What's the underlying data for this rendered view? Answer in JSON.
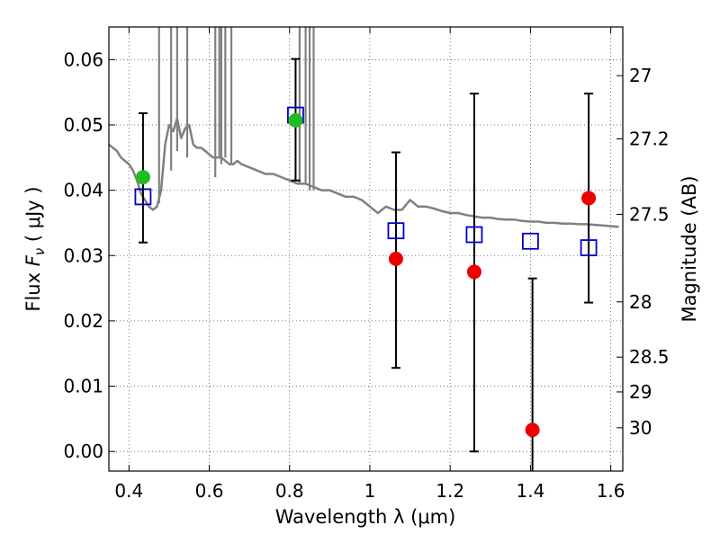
{
  "chart_data": {
    "type": "scatter",
    "title": "",
    "xlabel": "Wavelength  λ (μm)",
    "ylabel_prefix": "Flux  ",
    "ylabel_var": "F",
    "ylabel_sub": "ν",
    "ylabel_suffix": "  ( μJy )",
    "y2label": "Magnitude (AB)",
    "xlim": [
      0.35,
      1.63
    ],
    "ylim": [
      -0.003,
      0.065
    ],
    "grid": true,
    "xticks": [
      0.4,
      0.6,
      0.8,
      1.0,
      1.2,
      1.4,
      1.6
    ],
    "xtick_labels": [
      "0.4",
      "0.6",
      "0.8",
      "1",
      "1.2",
      "1.4",
      "1.6"
    ],
    "yticks": [
      0.0,
      0.01,
      0.02,
      0.03,
      0.04,
      0.05,
      0.06
    ],
    "ytick_labels": [
      "0.00",
      "0.01",
      "0.02",
      "0.03",
      "0.04",
      "0.05",
      "0.06"
    ],
    "y2ticks": [
      27,
      27.2,
      27.5,
      28,
      28.5,
      29,
      30
    ],
    "y2tick_labels": [
      "27",
      "27.2",
      "27.5",
      "28",
      "28.5",
      "29",
      "30"
    ],
    "colors": {
      "model": "#808080",
      "model_points": "#0000cc",
      "detection": "#22bb22",
      "measurement": "#ee0000",
      "errorbar": "#000000",
      "grid": "#555555"
    },
    "series": [
      {
        "kind": "line",
        "x": [
          0.35,
          0.36,
          0.37,
          0.38,
          0.39,
          0.4,
          0.41,
          0.42,
          0.43,
          0.44,
          0.45,
          0.46,
          0.47,
          0.48,
          0.49,
          0.5,
          0.51,
          0.52,
          0.53,
          0.54,
          0.55,
          0.56,
          0.57,
          0.58,
          0.59,
          0.6,
          0.61,
          0.62,
          0.63,
          0.64,
          0.65,
          0.66,
          0.67,
          0.68,
          0.7,
          0.72,
          0.74,
          0.76,
          0.78,
          0.8,
          0.82,
          0.84,
          0.86,
          0.88,
          0.9,
          0.92,
          0.94,
          0.96,
          0.98,
          1.0,
          1.02,
          1.04,
          1.06,
          1.08,
          1.1,
          1.12,
          1.14,
          1.16,
          1.18,
          1.2,
          1.22,
          1.24,
          1.26,
          1.28,
          1.3,
          1.32,
          1.34,
          1.36,
          1.38,
          1.4,
          1.42,
          1.44,
          1.46,
          1.48,
          1.5,
          1.52,
          1.54,
          1.56,
          1.58,
          1.6,
          1.62
        ],
        "y": [
          0.047,
          0.0465,
          0.046,
          0.045,
          0.0445,
          0.044,
          0.043,
          0.0415,
          0.0395,
          0.0385,
          0.0375,
          0.037,
          0.0375,
          0.04,
          0.047,
          0.05,
          0.049,
          0.051,
          0.048,
          0.0495,
          0.05,
          0.047,
          0.0465,
          0.0465,
          0.046,
          0.0455,
          0.045,
          0.045,
          0.045,
          0.0445,
          0.044,
          0.044,
          0.0445,
          0.044,
          0.0435,
          0.043,
          0.0425,
          0.0425,
          0.042,
          0.0415,
          0.041,
          0.041,
          0.0405,
          0.04,
          0.04,
          0.0395,
          0.039,
          0.039,
          0.0385,
          0.0375,
          0.0365,
          0.0375,
          0.037,
          0.037,
          0.0385,
          0.0375,
          0.0375,
          0.0372,
          0.0368,
          0.0365,
          0.0365,
          0.0362,
          0.036,
          0.0358,
          0.0358,
          0.0356,
          0.0355,
          0.0355,
          0.0353,
          0.0352,
          0.0352,
          0.035,
          0.035,
          0.0349,
          0.0349,
          0.0348,
          0.0348,
          0.0347,
          0.0346,
          0.0345,
          0.0344
        ]
      },
      {
        "kind": "spikes",
        "x": [
          0.475,
          0.505,
          0.52,
          0.545,
          0.615,
          0.625,
          0.63,
          0.64,
          0.655,
          0.825,
          0.84,
          0.85,
          0.86
        ],
        "y_base": [
          0.038,
          0.043,
          0.046,
          0.045,
          0.042,
          0.045,
          0.044,
          0.045,
          0.044,
          0.041,
          0.041,
          0.04,
          0.04
        ]
      },
      {
        "kind": "squares",
        "x": [
          0.435,
          0.815,
          1.065,
          1.26,
          1.4,
          1.545
        ],
        "y": [
          0.039,
          0.0515,
          0.0338,
          0.0332,
          0.0322,
          0.0312
        ]
      },
      {
        "kind": "green-points",
        "x": [
          0.435,
          0.815
        ],
        "y": [
          0.042,
          0.0507
        ]
      },
      {
        "kind": "red-points",
        "x": [
          1.065,
          1.26,
          1.405,
          1.545
        ],
        "y": [
          0.0295,
          0.0275,
          0.0033,
          0.0388
        ]
      },
      {
        "kind": "errorbars",
        "x": [
          0.435,
          0.815,
          1.065,
          1.26,
          1.405,
          1.545
        ],
        "ylow": [
          0.032,
          0.0415,
          0.0128,
          0.0,
          -0.004,
          0.0228
        ],
        "yhigh": [
          0.0518,
          0.0601,
          0.0458,
          0.0548,
          0.0265,
          0.0548
        ]
      }
    ]
  }
}
